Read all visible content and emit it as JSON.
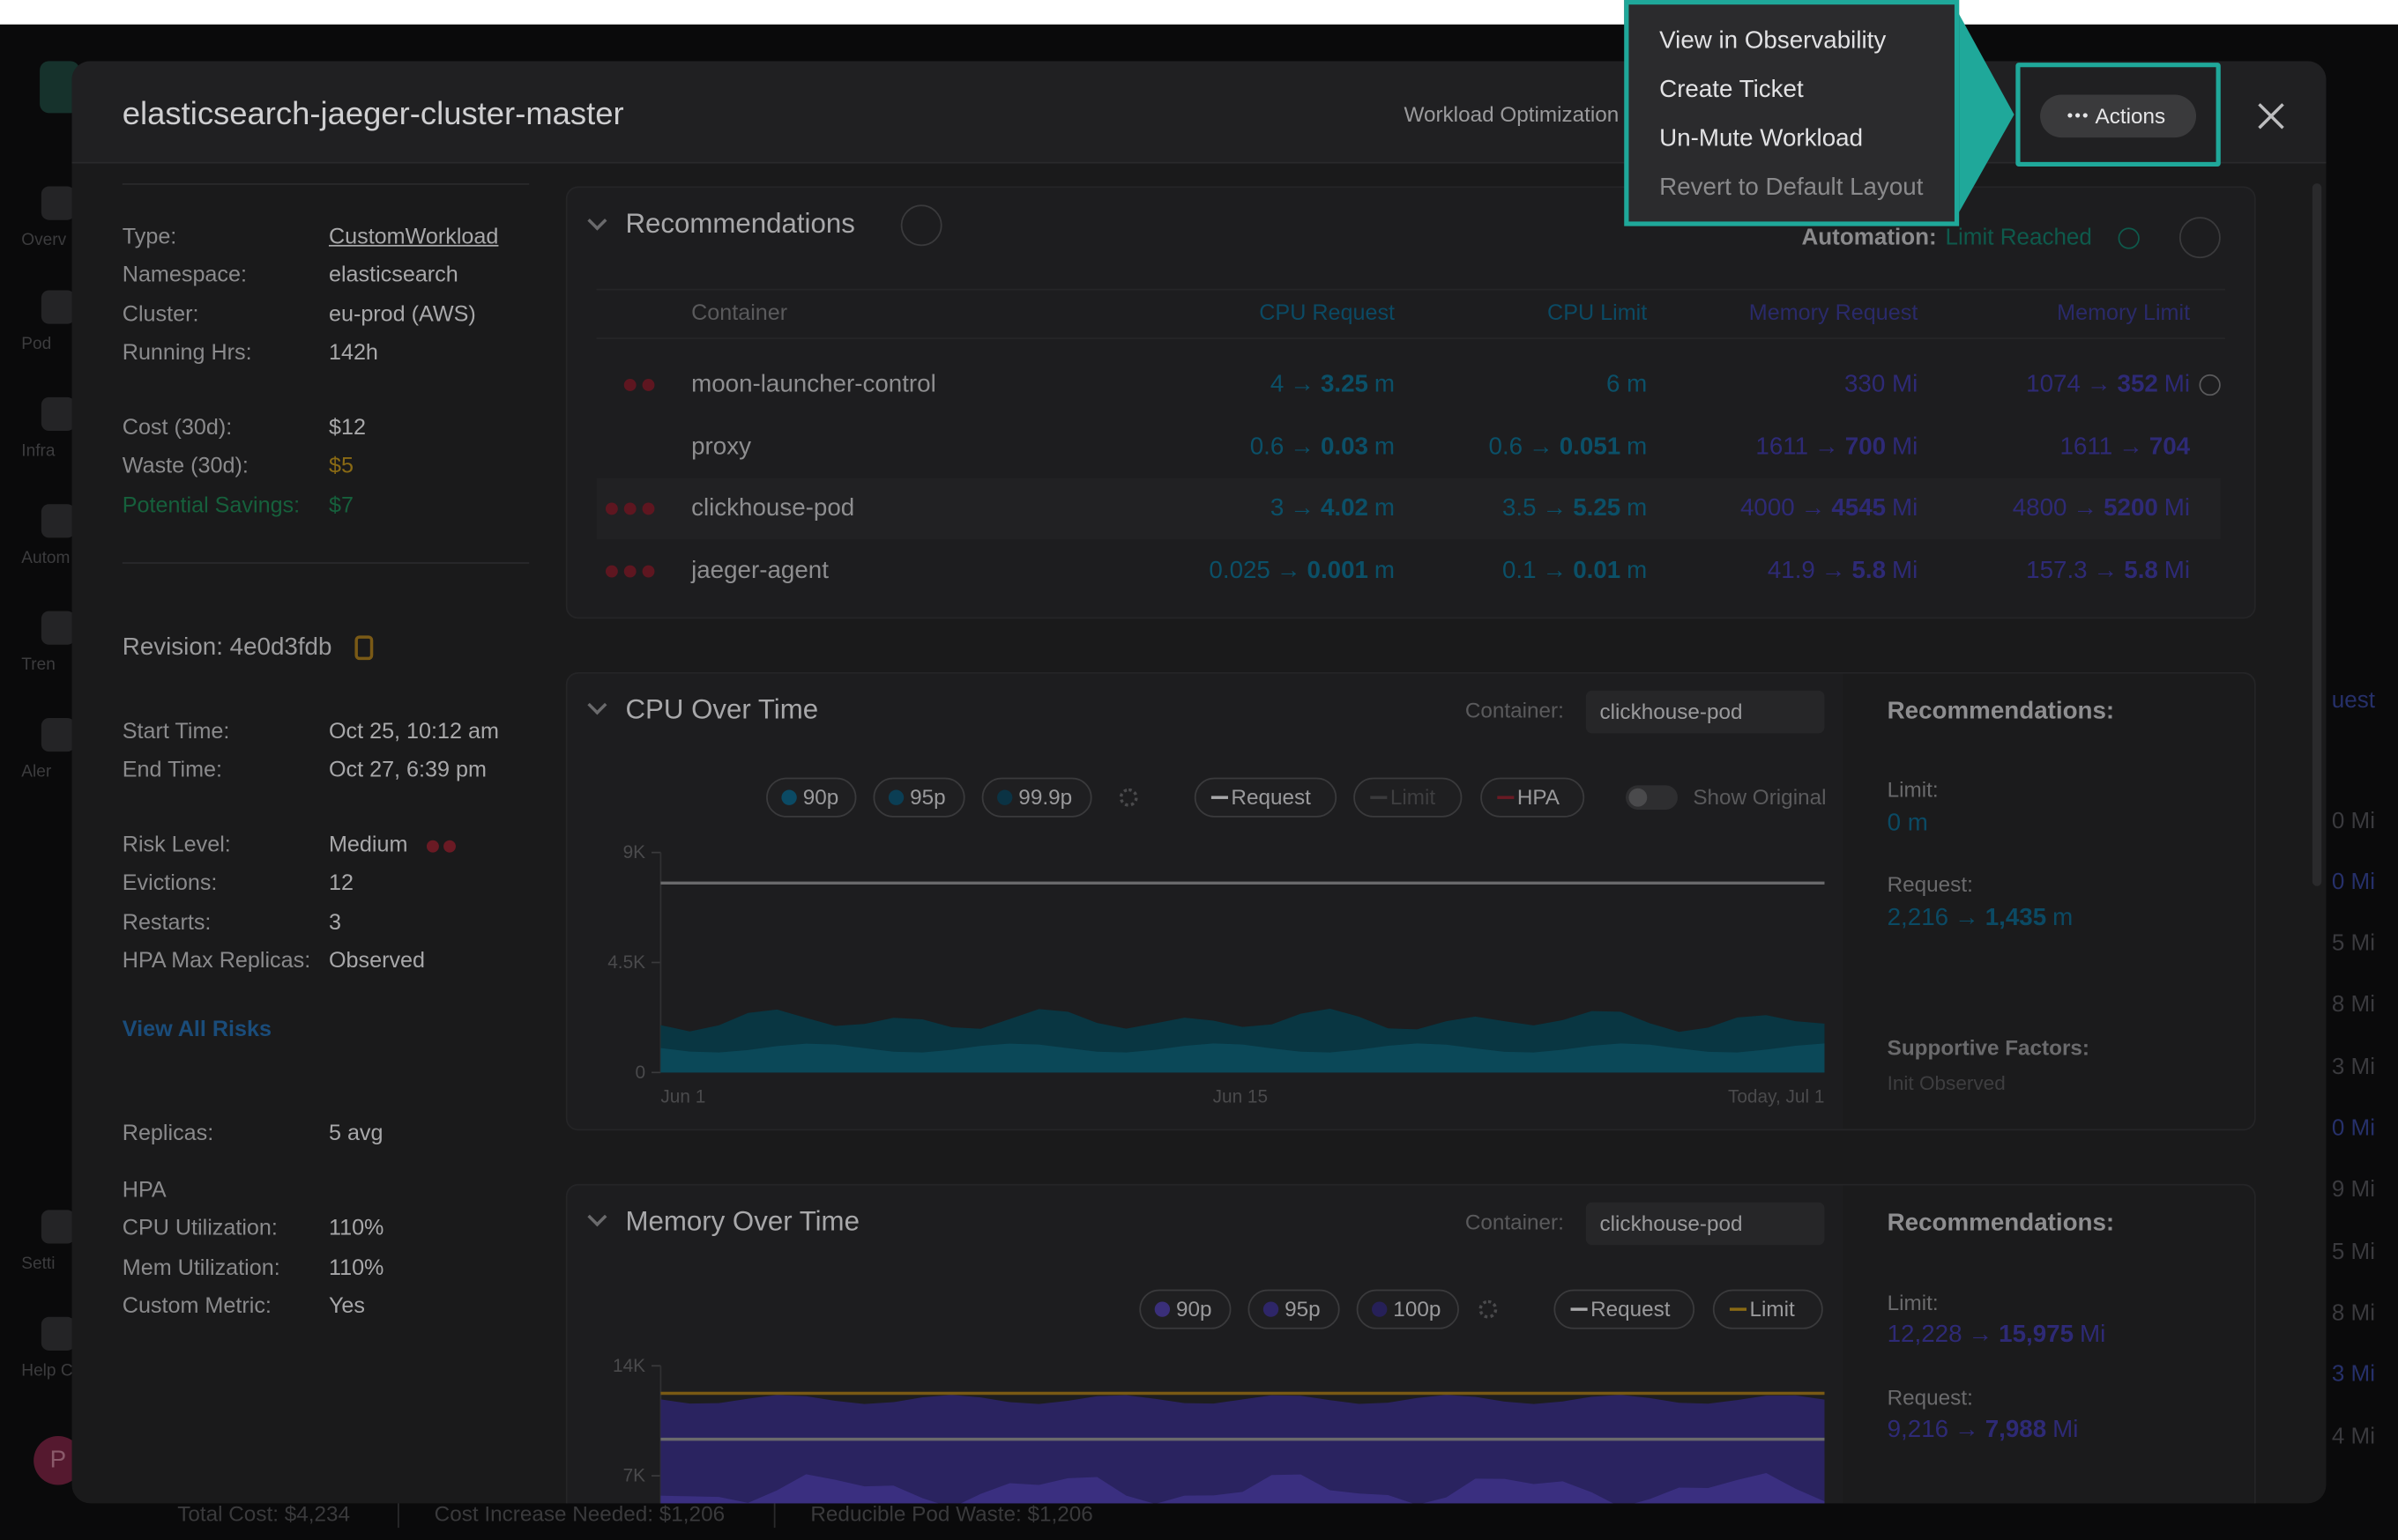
{
  "background": {
    "nav_labels": [
      "Overv",
      "Pod",
      "Infra",
      "Autom",
      "Tren",
      "Aler",
      "Setti",
      "Help C"
    ],
    "avatar": "P",
    "footer": [
      "Total Cost: $4,234",
      "Cost Increase Needed: $1,206",
      "Reducible Pod Waste: $1,206"
    ],
    "right_column": [
      "uest",
      "0 Mi",
      "0 Mi",
      "5 Mi",
      "8 Mi",
      "3 Mi",
      "0 Mi",
      "9 Mi",
      "5 Mi",
      "8 Mi",
      "3 Mi",
      "4 Mi"
    ]
  },
  "header": {
    "title": "elasticsearch-jaeger-cluster-master",
    "tab": "Workload Optimization",
    "actions": "Actions"
  },
  "actions_menu": [
    "View in Observability",
    "Create Ticket",
    "Un-Mute Workload",
    "Revert to Default Layout"
  ],
  "details": {
    "summary": [
      [
        "Type:",
        "CustomWorkload"
      ],
      [
        "Namespace:",
        "elasticsearch"
      ],
      [
        "Cluster:",
        "eu-prod (AWS)"
      ],
      [
        "Running Hrs:",
        "142h"
      ]
    ],
    "costs": [
      [
        "Cost (30d):",
        "$12"
      ],
      [
        "Waste (30d):",
        "$5"
      ],
      [
        "Potential Savings:",
        "$7"
      ]
    ],
    "revision": "Revision: 4e0d3fdb",
    "times": [
      [
        "Start Time:",
        "Oct 25, 10:12 am"
      ],
      [
        "End Time:",
        "Oct 27, 6:39 pm"
      ]
    ],
    "risks": [
      [
        "Risk Level:",
        "Medium"
      ],
      [
        "Evictions:",
        "12"
      ],
      [
        "Restarts:",
        "3"
      ],
      [
        "HPA Max Replicas:",
        "Observed"
      ]
    ],
    "risk_level_dots": 2,
    "view_all_risks": "View All Risks",
    "replicas": [
      "Replicas:",
      "5 avg"
    ],
    "hpa_heading": "HPA",
    "hpa": [
      [
        "CPU Utilization:",
        "110%"
      ],
      [
        "Mem Utilization:",
        "110%"
      ],
      [
        "Custom Metric:",
        "Yes"
      ]
    ]
  },
  "recommendations": {
    "title": "Recommendations",
    "automation_label": "Automation:",
    "automation_status": "Limit Reached",
    "columns": [
      "Container",
      "CPU Request",
      "CPU Limit",
      "Memory Request",
      "Memory Limit"
    ],
    "arrow": "→",
    "rows": [
      {
        "risk_dots": 2,
        "container": "moon-launcher-control",
        "cells": [
          {
            "from": "4",
            "to": "3.25",
            "unit": "m"
          },
          {
            "value": "6 m"
          },
          {
            "value": "330 Mi"
          },
          {
            "from": "1074",
            "to": "352",
            "unit": "Mi"
          }
        ]
      },
      {
        "risk_dots": 0,
        "container": "proxy",
        "cells": [
          {
            "from": "0.6",
            "to": "0.03",
            "unit": "m"
          },
          {
            "from": "0.6",
            "to": "0.051",
            "unit": "m"
          },
          {
            "from": "1611",
            "to": "700",
            "unit": "Mi"
          },
          {
            "from": "1611",
            "to": "704"
          }
        ]
      },
      {
        "risk_dots": 3,
        "container": "clickhouse-pod",
        "cells": [
          {
            "from": "3",
            "to": "4.02",
            "unit": "m"
          },
          {
            "from": "3.5",
            "to": "5.25",
            "unit": "m"
          },
          {
            "from": "4000",
            "to": "4545",
            "unit": "Mi"
          },
          {
            "from": "4800",
            "to": "5200",
            "unit": "Mi"
          }
        ]
      },
      {
        "risk_dots": 3,
        "container": "jaeger-agent",
        "cells": [
          {
            "from": "0.025",
            "to": "0.001",
            "unit": "m"
          },
          {
            "from": "0.1",
            "to": "0.01",
            "unit": "m"
          },
          {
            "from": "41.9",
            "to": "5.8",
            "unit": "Mi"
          },
          {
            "from": "157.3",
            "to": "5.8",
            "unit": "Mi"
          }
        ]
      }
    ]
  },
  "cpu_chart": {
    "title": "CPU Over Time",
    "container_label": "Container:",
    "container": "clickhouse-pod",
    "percentiles": [
      "90p",
      "95p",
      "99.9p"
    ],
    "lines": [
      "Request",
      "Limit",
      "HPA"
    ],
    "toggle": "Show Original",
    "ylim": [
      0,
      9000
    ],
    "yticks": [
      {
        "value": 9000,
        "label": "9K"
      },
      {
        "value": 4500,
        "label": "4.5K"
      },
      0
    ],
    "x_labels": [
      "Jun 1",
      "Jun 15",
      "Today, Jul 1"
    ],
    "request_line": 7750,
    "side": {
      "title": "Recommendations:",
      "limit_label": "Limit:",
      "limit": "0 m",
      "request_label": "Request:",
      "request": {
        "from": "2,216",
        "to": "1,435",
        "unit": "m"
      },
      "factors_label": "Supportive Factors:",
      "factors": "Init Observed"
    }
  },
  "memory_chart": {
    "title": "Memory Over Time",
    "container_label": "Container:",
    "container": "clickhouse-pod",
    "percentiles": [
      "90p",
      "95p",
      "100p"
    ],
    "lines": [
      "Request",
      "Limit"
    ],
    "ylim": [
      0,
      14000
    ],
    "yticks": [
      {
        "value": 14000,
        "label": "14K"
      },
      {
        "value": 7000,
        "label": "7K"
      }
    ],
    "request_line": 9330,
    "limit_line": 12250,
    "side": {
      "title": "Recommendations:",
      "limit_label": "Limit:",
      "limit": {
        "from": "12,228",
        "to": "15,975",
        "unit": "Mi"
      },
      "request_label": "Request:",
      "request": {
        "from": "9,216",
        "to": "7,988",
        "unit": "Mi"
      }
    }
  }
}
